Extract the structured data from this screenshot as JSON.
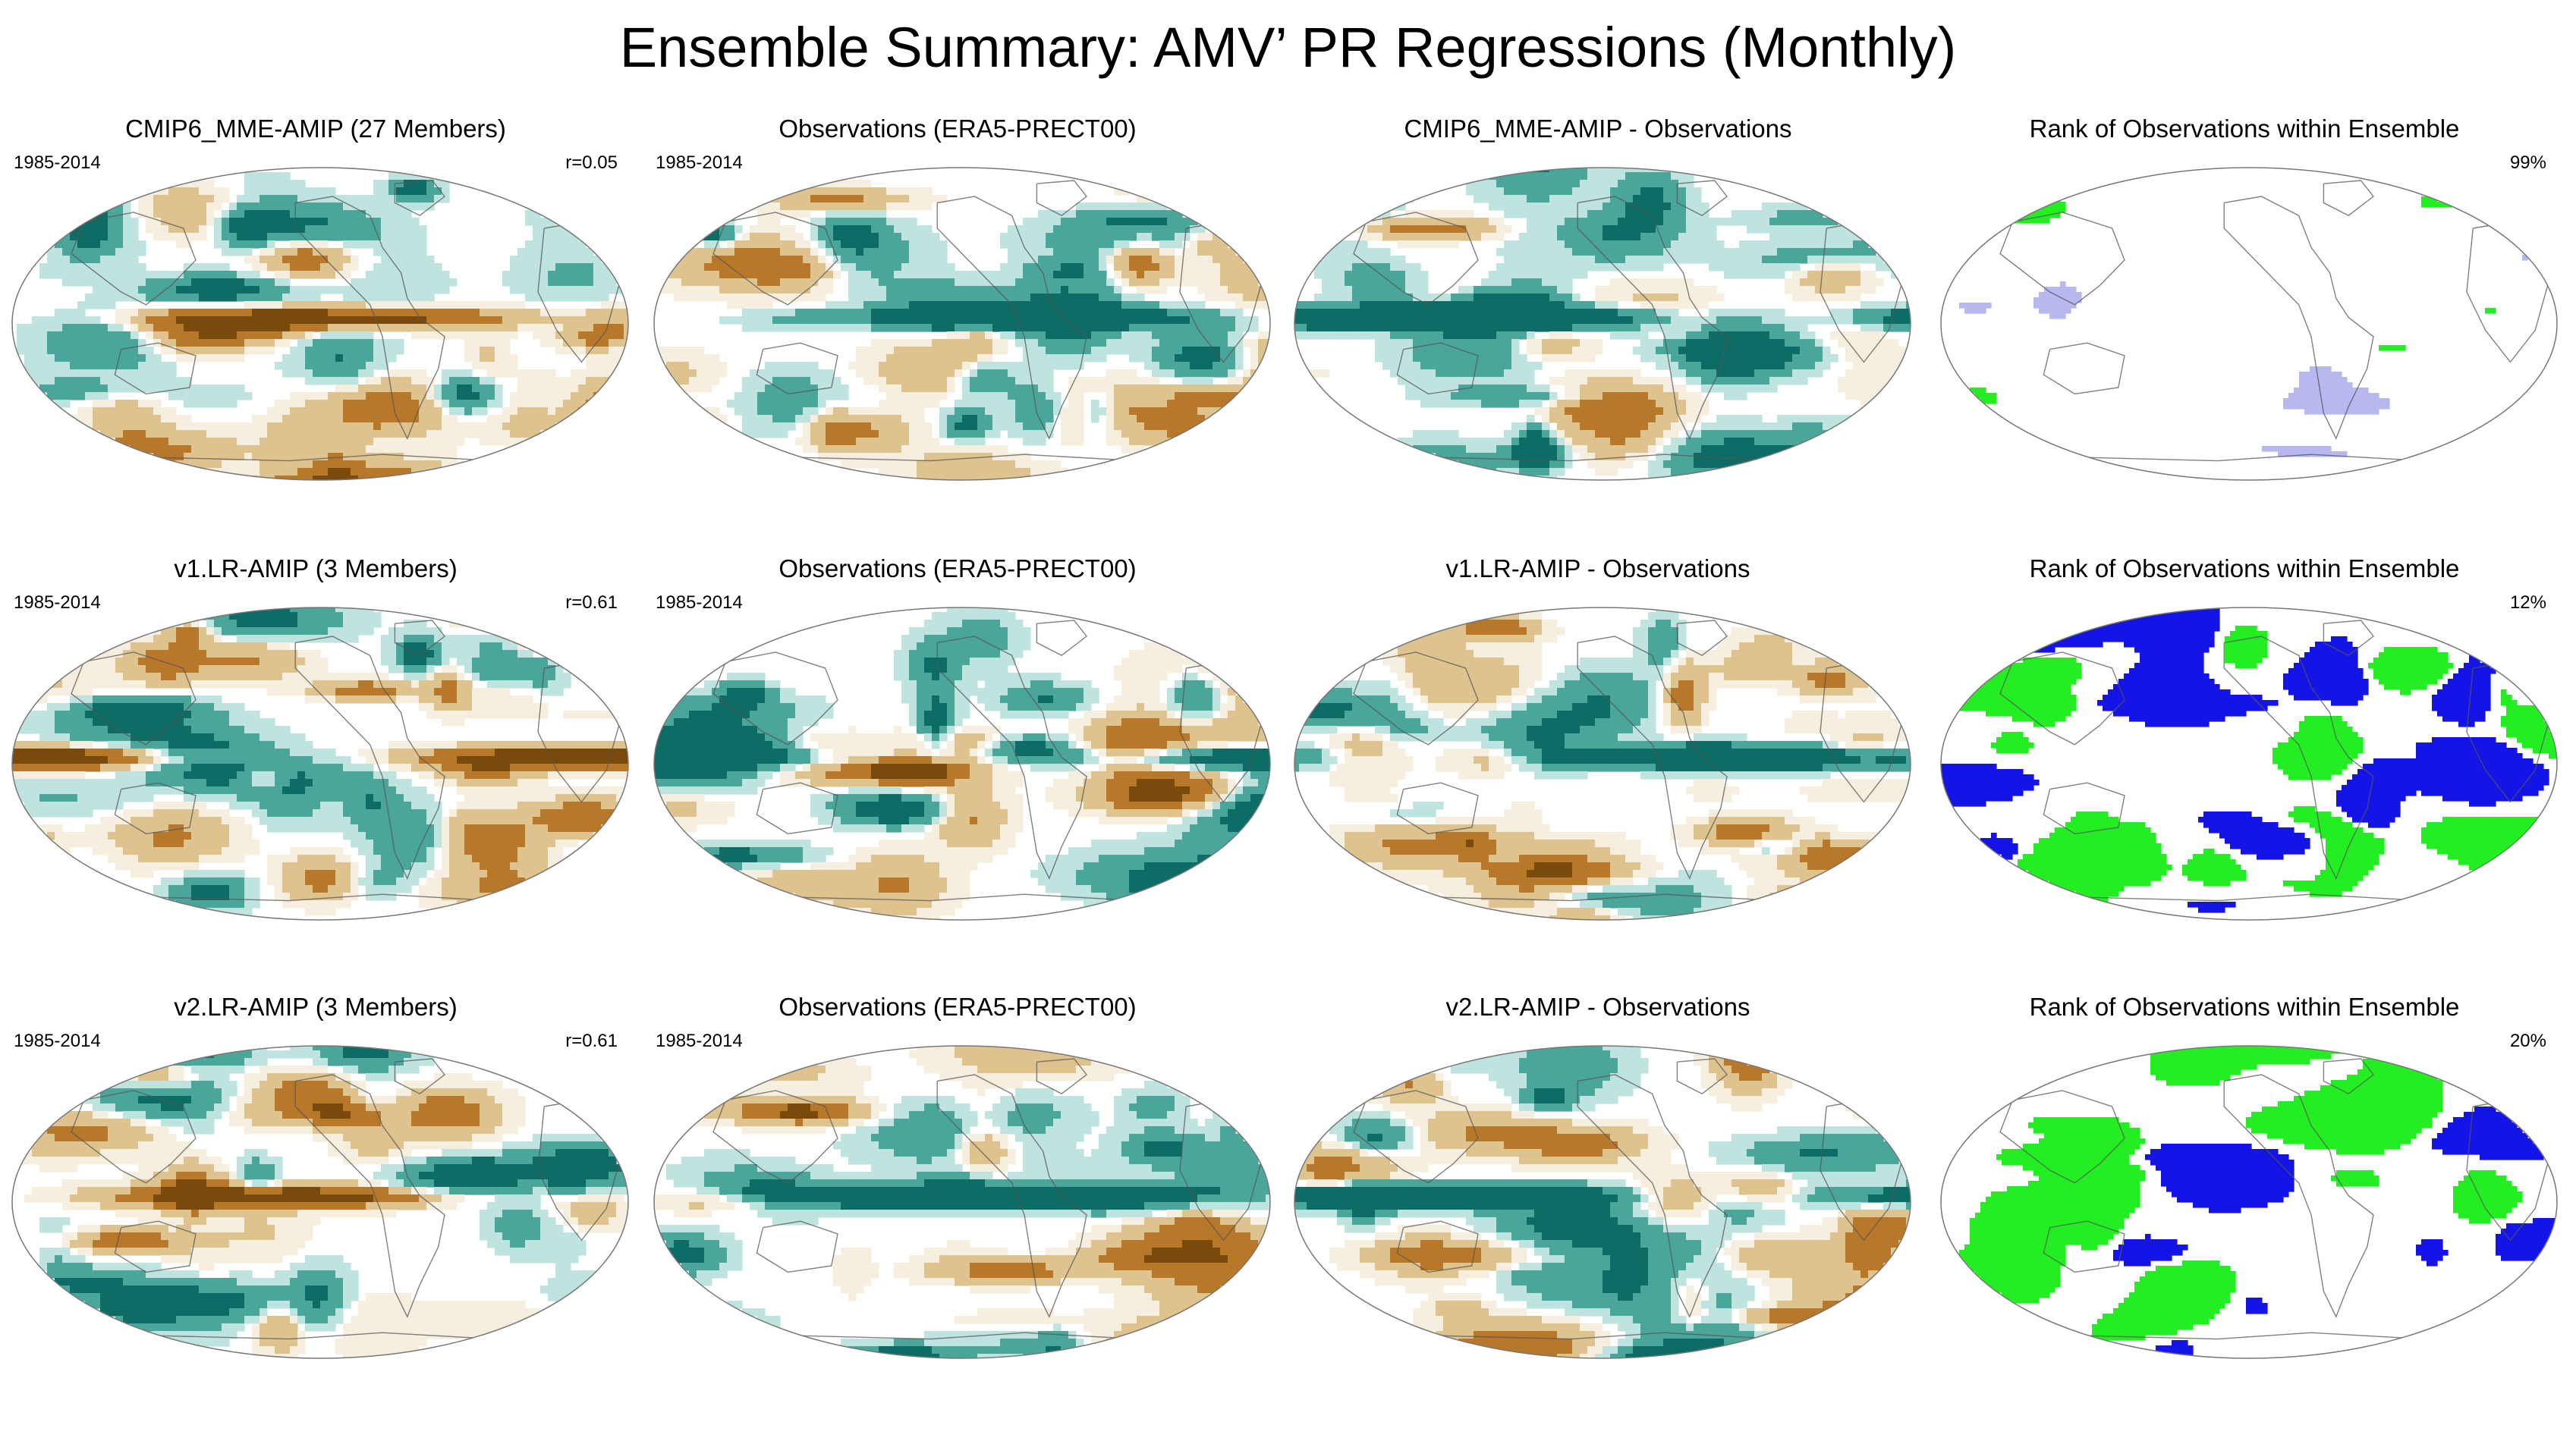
{
  "figure": {
    "title": "Ensemble Summary: AMV’ PR Regressions (Monthly)"
  },
  "chart_data": [
    {
      "type": "heatmap",
      "row": 1,
      "col": 1,
      "title": "CMIP6_MME-AMIP (27 Members)",
      "period": "1985-2014",
      "stat_label": "r=0.05",
      "r": 0.05,
      "projection": "Robinson",
      "colormap": "brown-white-teal"
    },
    {
      "type": "heatmap",
      "row": 1,
      "col": 2,
      "title": "Observations (ERA5-PRECT00)",
      "period": "1985-2014",
      "projection": "Robinson",
      "colormap": "brown-white-teal"
    },
    {
      "type": "heatmap",
      "row": 1,
      "col": 3,
      "title": "CMIP6_MME-AMIP - Observations",
      "projection": "Robinson",
      "colormap": "brown-white-teal"
    },
    {
      "type": "heatmap",
      "row": 1,
      "col": 4,
      "title": "Rank of Observations within Ensemble",
      "stat_label": "99%",
      "percent": 99,
      "projection": "Robinson",
      "colormap": "white-green-blue"
    },
    {
      "type": "heatmap",
      "row": 2,
      "col": 1,
      "title": "v1.LR-AMIP (3 Members)",
      "period": "1985-2014",
      "stat_label": "r=0.61",
      "r": 0.61,
      "projection": "Robinson",
      "colormap": "brown-white-teal"
    },
    {
      "type": "heatmap",
      "row": 2,
      "col": 2,
      "title": "Observations (ERA5-PRECT00)",
      "period": "1985-2014",
      "projection": "Robinson",
      "colormap": "brown-white-teal"
    },
    {
      "type": "heatmap",
      "row": 2,
      "col": 3,
      "title": "v1.LR-AMIP - Observations",
      "projection": "Robinson",
      "colormap": "brown-white-teal"
    },
    {
      "type": "heatmap",
      "row": 2,
      "col": 4,
      "title": "Rank of Observations within Ensemble",
      "stat_label": "12%",
      "percent": 12,
      "projection": "Robinson",
      "colormap": "white-green-blue"
    },
    {
      "type": "heatmap",
      "row": 3,
      "col": 1,
      "title": "v2.LR-AMIP (3 Members)",
      "period": "1985-2014",
      "stat_label": "r=0.61",
      "r": 0.61,
      "projection": "Robinson",
      "colormap": "brown-white-teal"
    },
    {
      "type": "heatmap",
      "row": 3,
      "col": 2,
      "title": "Observations (ERA5-PRECT00)",
      "period": "1985-2014",
      "projection": "Robinson",
      "colormap": "brown-white-teal"
    },
    {
      "type": "heatmap",
      "row": 3,
      "col": 3,
      "title": "v2.LR-AMIP - Observations",
      "projection": "Robinson",
      "colormap": "brown-white-teal"
    },
    {
      "type": "heatmap",
      "row": 3,
      "col": 4,
      "title": "Rank of Observations within Ensemble",
      "stat_label": "20%",
      "percent": 20,
      "projection": "Robinson",
      "colormap": "white-green-blue"
    }
  ],
  "colors": {
    "brown_dark": "#7a4a0c",
    "brown": "#b8782a",
    "tan": "#dfc38f",
    "cream": "#f6efe0",
    "white": "#ffffff",
    "teal_light": "#bfe4df",
    "teal": "#4aa59b",
    "teal_dark": "#0d6c66",
    "rank_green": "#22ee22",
    "rank_blue": "#1414e6",
    "coast": "#555555"
  }
}
